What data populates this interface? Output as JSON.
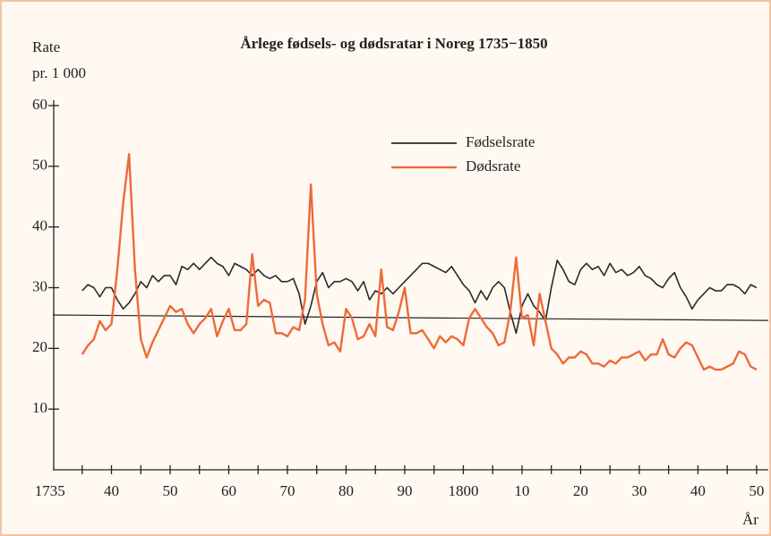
{
  "chart_data": {
    "type": "line",
    "title": "Årlege fødsels- og dødsratar i Noreg 1735−1850",
    "y_label": [
      "Rate",
      "pr. 1 000"
    ],
    "x_label": "År",
    "xlim": [
      1730,
      1852
    ],
    "ylim": [
      0,
      60
    ],
    "yticks": [
      10,
      20,
      30,
      40,
      50,
      60
    ],
    "xticks": [
      {
        "value": 1735,
        "label": "1735"
      },
      {
        "value": 1740,
        "label": "40"
      },
      {
        "value": 1750,
        "label": "50"
      },
      {
        "value": 1760,
        "label": "60"
      },
      {
        "value": 1770,
        "label": "70"
      },
      {
        "value": 1780,
        "label": "80"
      },
      {
        "value": 1790,
        "label": "90"
      },
      {
        "value": 1800,
        "label": "1800"
      },
      {
        "value": 1810,
        "label": "10"
      },
      {
        "value": 1820,
        "label": "20"
      },
      {
        "value": 1830,
        "label": "30"
      },
      {
        "value": 1840,
        "label": "40"
      },
      {
        "value": 1850,
        "label": "50"
      }
    ],
    "minor_xticks": [
      1745,
      1755,
      1765,
      1775,
      1785,
      1795,
      1805,
      1815,
      1825,
      1835,
      1845
    ],
    "x": [
      1735,
      1736,
      1737,
      1738,
      1739,
      1740,
      1741,
      1742,
      1743,
      1744,
      1745,
      1746,
      1747,
      1748,
      1749,
      1750,
      1751,
      1752,
      1753,
      1754,
      1755,
      1756,
      1757,
      1758,
      1759,
      1760,
      1761,
      1762,
      1763,
      1764,
      1765,
      1766,
      1767,
      1768,
      1769,
      1770,
      1771,
      1772,
      1773,
      1774,
      1775,
      1776,
      1777,
      1778,
      1779,
      1780,
      1781,
      1782,
      1783,
      1784,
      1785,
      1786,
      1787,
      1788,
      1789,
      1790,
      1791,
      1792,
      1793,
      1794,
      1795,
      1796,
      1797,
      1798,
      1799,
      1800,
      1801,
      1802,
      1803,
      1804,
      1805,
      1806,
      1807,
      1808,
      1809,
      1810,
      1811,
      1812,
      1813,
      1814,
      1815,
      1816,
      1817,
      1818,
      1819,
      1820,
      1821,
      1822,
      1823,
      1824,
      1825,
      1826,
      1827,
      1828,
      1829,
      1830,
      1831,
      1832,
      1833,
      1834,
      1835,
      1836,
      1837,
      1838,
      1839,
      1840,
      1841,
      1842,
      1843,
      1844,
      1845,
      1846,
      1847,
      1848,
      1849,
      1850
    ],
    "series": [
      {
        "name": "Fødselsrate",
        "color": "#2a2a2a",
        "values": [
          29.5,
          30.5,
          30,
          28.5,
          30,
          30,
          28,
          26.5,
          27.5,
          29,
          31,
          30,
          32,
          31,
          32,
          32,
          30.5,
          33.5,
          33,
          34,
          33,
          34,
          35,
          34,
          33.5,
          32,
          34,
          33.5,
          33,
          32,
          33,
          32,
          31.5,
          32,
          31,
          31,
          31.5,
          29,
          24,
          27,
          31,
          32.5,
          30,
          31,
          31,
          31.5,
          31,
          29.5,
          31,
          28,
          29.5,
          29,
          30,
          29,
          30,
          31,
          32,
          33,
          34,
          34,
          33.5,
          33,
          32.5,
          33.5,
          32,
          30.5,
          29.5,
          27.5,
          29.5,
          28,
          30,
          31,
          30,
          26,
          22.5,
          27,
          29,
          27,
          26,
          24.5,
          30,
          34.5,
          33,
          31,
          30.5,
          33,
          34,
          33,
          33.5,
          32,
          34,
          32.5,
          33,
          32,
          32.5,
          33.5,
          32,
          31.5,
          30.5,
          30,
          31.5,
          32.5,
          30,
          28.5,
          26.5,
          28,
          29,
          30,
          29.5,
          29.5,
          30.5,
          30.5,
          30,
          29,
          30.5,
          30
        ]
      },
      {
        "name": "Dødsrate",
        "color": "#ee6a3a",
        "values": [
          19,
          20.5,
          21.5,
          24.5,
          23,
          24,
          33,
          44,
          52,
          33,
          21.5,
          18.5,
          21,
          23,
          25,
          27,
          26,
          26.5,
          24,
          22.5,
          24,
          25,
          26.5,
          22,
          24.5,
          26.5,
          23,
          23,
          24,
          35.5,
          27,
          28,
          27.5,
          22.5,
          22.5,
          22,
          23.5,
          23,
          28,
          47,
          29,
          24,
          20.5,
          21,
          19.5,
          26.5,
          25,
          21.5,
          22,
          24,
          22,
          33,
          23.5,
          23,
          26,
          30,
          22.5,
          22.5,
          23,
          21.5,
          20,
          22,
          21,
          22,
          21.5,
          20.5,
          25,
          26.5,
          25,
          23.5,
          22.5,
          20.5,
          21,
          26,
          35,
          25,
          25.5,
          20.5,
          29,
          24.5,
          20,
          19,
          17.5,
          18.5,
          18.5,
          19.5,
          19,
          17.5,
          17.5,
          17,
          18,
          17.5,
          18.5,
          18.5,
          19,
          19.5,
          18,
          19,
          19,
          21.5,
          19,
          18.5,
          20,
          21,
          20.5,
          18.5,
          16.5,
          17,
          16.5,
          16.5,
          17,
          17.5,
          19.5,
          19,
          17,
          16.5
        ]
      }
    ],
    "trend_line": {
      "x": [
        1730,
        1852
      ],
      "values": [
        25.5,
        24.6
      ],
      "color": "#222222"
    }
  }
}
